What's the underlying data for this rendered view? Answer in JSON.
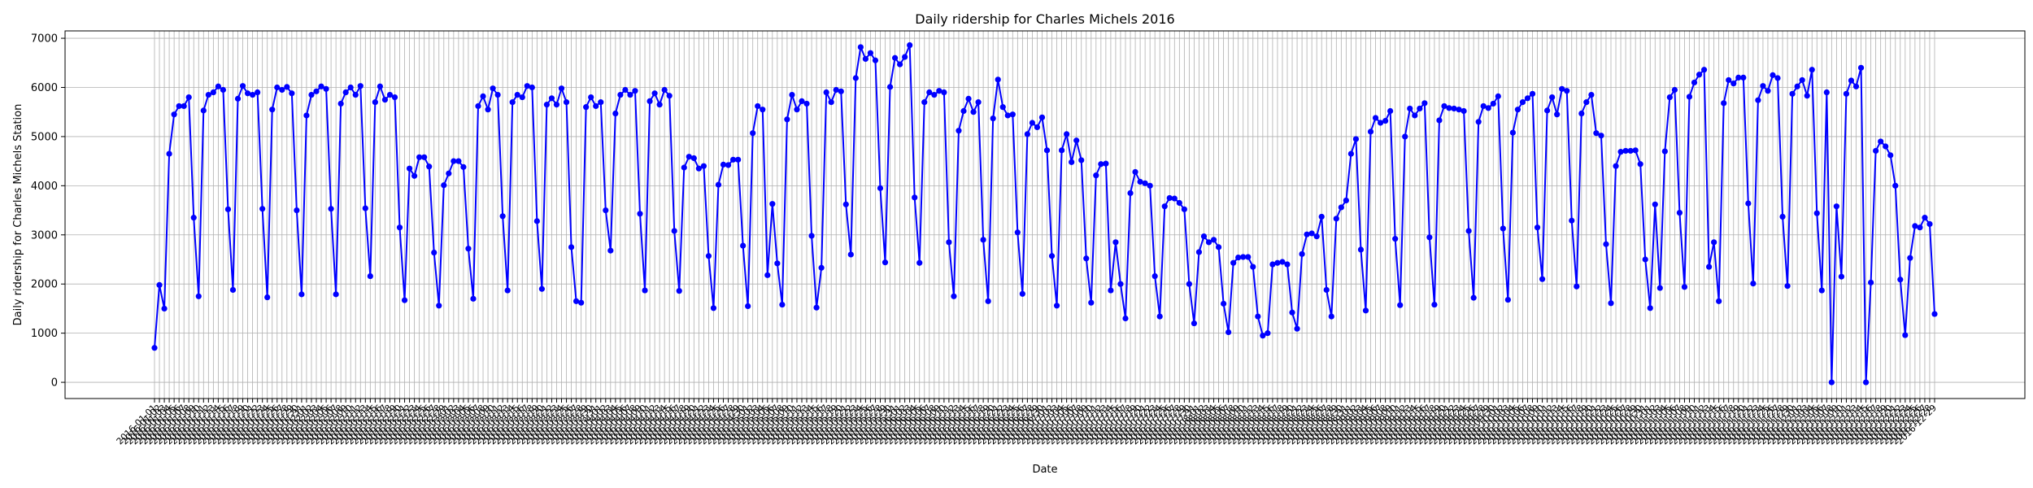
{
  "chart_data": {
    "type": "line",
    "title": "Daily ridership for Charles Michels 2016",
    "xlabel": "Date",
    "ylabel": "Daily ridership for Charles Michels Station",
    "x_start": "2016-01-01",
    "x_end": "2016-12-31",
    "x_tick_format": "YYYY-MM-DD",
    "ylim": [
      -330,
      7150
    ],
    "yticks": [
      0,
      1000,
      2000,
      3000,
      4000,
      5000,
      6000,
      7000
    ],
    "grid": true,
    "color": "#0000ff",
    "marker": "circle",
    "values": [
      700,
      1980,
      1500,
      4650,
      5450,
      5620,
      5620,
      5800,
      3350,
      1750,
      5530,
      5850,
      5900,
      6020,
      5950,
      3520,
      1880,
      5770,
      6030,
      5880,
      5850,
      5900,
      3530,
      1730,
      5550,
      6000,
      5950,
      6010,
      5880,
      3500,
      1790,
      5430,
      5850,
      5920,
      6020,
      5970,
      3530,
      1790,
      5670,
      5900,
      6000,
      5850,
      6030,
      3540,
      2160,
      5700,
      6020,
      5750,
      5850,
      5800,
      3150,
      1670,
      4350,
      4200,
      4580,
      4580,
      4390,
      2640,
      1560,
      4010,
      4250,
      4500,
      4500,
      4380,
      2720,
      1700,
      5620,
      5820,
      5550,
      5980,
      5850,
      3380,
      1870,
      5700,
      5850,
      5800,
      6030,
      6000,
      3280,
      1900,
      5650,
      5780,
      5650,
      5980,
      5700,
      2750,
      1650,
      1620,
      5600,
      5800,
      5620,
      5700,
      3500,
      2680,
      5470,
      5850,
      5950,
      5850,
      5930,
      3430,
      1870,
      5720,
      5880,
      5650,
      5950,
      5830,
      3080,
      1860,
      4370,
      4590,
      4560,
      4350,
      4400,
      2570,
      1510,
      4020,
      4430,
      4420,
      4530,
      4530,
      2780,
      1550,
      5070,
      5620,
      5550,
      2180,
      3630,
      2420,
      1580,
      5350,
      5850,
      5550,
      5720,
      5670,
      2980,
      1520,
      2330,
      5900,
      5700,
      5950,
      5920,
      3620,
      2600,
      6190,
      6820,
      6580,
      6700,
      6550,
      3950,
      2440,
      6010,
      6600,
      6470,
      6620,
      6860,
      3760,
      2430,
      5700,
      5900,
      5850,
      5930,
      5900,
      2850,
      1750,
      5120,
      5520,
      5770,
      5500,
      5700,
      2900,
      1650,
      5370,
      6160,
      5600,
      5430,
      5450,
      3050,
      1800,
      5050,
      5280,
      5190,
      5390,
      4720,
      2570,
      1560,
      4720,
      5050,
      4480,
      4920,
      4520,
      2520,
      1620,
      4210,
      4440,
      4450,
      1870,
      2850,
      2000,
      1300,
      3850,
      4280,
      4080,
      4050,
      4000,
      2160,
      1340,
      3580,
      3750,
      3740,
      3650,
      3520,
      2000,
      1200,
      2650,
      2970,
      2850,
      2900,
      2750,
      1600,
      1020,
      2430,
      2540,
      2550,
      2550,
      2350,
      1340,
      950,
      1000,
      2400,
      2430,
      2450,
      2400,
      1420,
      1090,
      2610,
      3010,
      3030,
      2970,
      3370,
      1880,
      1340,
      3330,
      3560,
      3700,
      4650,
      4950,
      2700,
      1460,
      5100,
      5380,
      5280,
      5320,
      5520,
      2920,
      1570,
      5000,
      5570,
      5430,
      5570,
      5680,
      2950,
      1580,
      5330,
      5620,
      5580,
      5570,
      5550,
      5520,
      3080,
      1720,
      5300,
      5620,
      5580,
      5670,
      5820,
      3130,
      1680,
      5080,
      5550,
      5700,
      5780,
      5870,
      3150,
      2100,
      5530,
      5800,
      5450,
      5970,
      5930,
      3290,
      1950,
      5470,
      5700,
      5850,
      5070,
      5020,
      2810,
      1610,
      4400,
      4690,
      4710,
      4710,
      4720,
      4440,
      2500,
      1510,
      3620,
      1920,
      4700,
      5800,
      5950,
      3450,
      1940,
      5810,
      6100,
      6260,
      6360,
      2350,
      2850,
      1650,
      5680,
      6150,
      6080,
      6200,
      6200,
      3640,
      2010,
      5740,
      6030,
      5930,
      6250,
      6190,
      3370,
      1960,
      5870,
      6020,
      6150,
      5830,
      6360,
      3440,
      1870,
      5900,
      0,
      3580,
      2150,
      5870,
      6140,
      6020,
      6400,
      0,
      2030,
      4710,
      4900,
      4800,
      4620,
      4000,
      2090,
      960,
      2530,
      3180,
      3150,
      3350,
      3220,
      1390
    ]
  }
}
